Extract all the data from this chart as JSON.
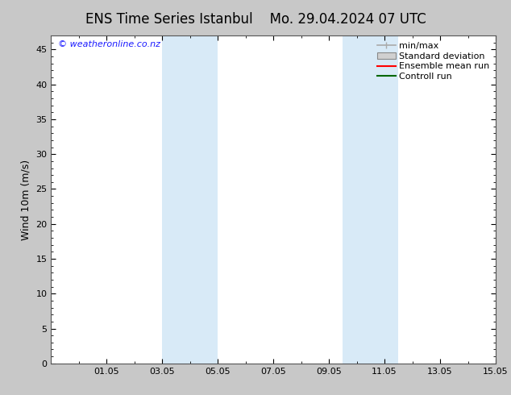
{
  "title_left": "ENS Time Series Istanbul",
  "title_right": "Mo. 29.04.2024 07 UTC",
  "ylabel": "Wind 10m (m/s)",
  "ylim": [
    0,
    47
  ],
  "yticks": [
    0,
    5,
    10,
    15,
    20,
    25,
    30,
    35,
    40,
    45
  ],
  "xlim_start": 0,
  "xlim_end": 16,
  "xtick_labels": [
    "01.05",
    "03.05",
    "05.05",
    "07.05",
    "09.05",
    "11.05",
    "13.05",
    "15.05"
  ],
  "xtick_positions": [
    2,
    4,
    6,
    8,
    10,
    12,
    14,
    16
  ],
  "shaded_bands": [
    {
      "xmin": 4.0,
      "xmax": 6.0,
      "color": "#d8eaf7"
    },
    {
      "xmin": 10.5,
      "xmax": 12.5,
      "color": "#d8eaf7"
    }
  ],
  "watermark": "© weatheronline.co.nz",
  "watermark_color": "#1a1aff",
  "figure_bg_color": "#c8c8c8",
  "plot_bg_color": "#ffffff",
  "legend_items": [
    {
      "label": "min/max",
      "color": "#aaaaaa",
      "type": "hline_arrows"
    },
    {
      "label": "Standard deviation",
      "color": "#d0d0d0",
      "type": "box"
    },
    {
      "label": "Ensemble mean run",
      "color": "#ff0000",
      "type": "line"
    },
    {
      "label": "Controll run",
      "color": "#006600",
      "type": "line"
    }
  ],
  "title_fontsize": 12,
  "axis_label_fontsize": 9,
  "tick_fontsize": 8,
  "legend_fontsize": 8,
  "watermark_fontsize": 8
}
